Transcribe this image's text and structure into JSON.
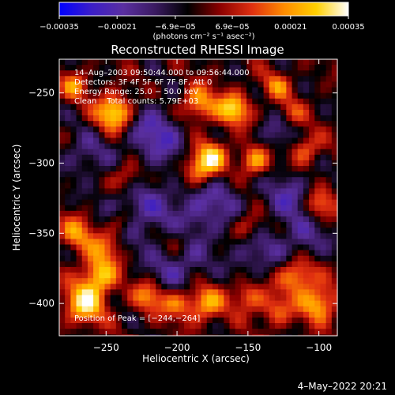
{
  "colors": {
    "background": "#000000",
    "foreground": "#ffffff"
  },
  "chart_data": {
    "type": "heatmap",
    "title": "Reconstructed RHESSI Image",
    "xlabel": "Heliocentric X (arcsec)",
    "ylabel": "Heliocentric Y (arcsec)",
    "xlim": [
      -283,
      -87
    ],
    "ylim": [
      -423,
      -226
    ],
    "x_ticks": [
      -250,
      -200,
      -150,
      -100
    ],
    "x_tick_labels": [
      "−250",
      "−200",
      "−150",
      "−100"
    ],
    "y_ticks": [
      -250,
      -300,
      -350,
      -400
    ],
    "y_tick_labels": [
      "−250",
      "−300",
      "−350",
      "−400"
    ],
    "colorbar": {
      "vmin": -0.00035,
      "vmax": 0.00035,
      "ticks": [
        -0.00035,
        -0.00021,
        -6.9e-05,
        6.9e-05,
        0.00021,
        0.00035
      ],
      "tick_labels": [
        "−0.00035",
        "−0.00021",
        "−6.9e−05",
        "6.9e−05",
        "0.00021",
        "0.00035"
      ],
      "unit_label": "(photons cm⁻² s⁻¹ asec⁻²)",
      "colormap": [
        "#0000ff",
        "#3b1ec8",
        "#5a2fa0",
        "#3a1a60",
        "#000000",
        "#8b0000",
        "#e03010",
        "#ff8c00",
        "#ffd000",
        "#ffffff"
      ]
    },
    "annotations": [
      "14–Aug–2003 09:50:44.000 to 09:56:44.000",
      "Detectors: 3F 4F 5F 6F 7F 8F, Att 0",
      "Energy Range: 25.0 − 50.0 keV",
      "Clean    Total counts: 5.79E+03",
      "Position of Peak = [−244,−264]"
    ],
    "peak": {
      "x": -244,
      "y": -264
    },
    "peak_value": 0.00035,
    "grid": false,
    "bright_sources": [
      {
        "x": -244,
        "y": -264,
        "amp": 1.0,
        "sigma": 9
      },
      {
        "x": -272,
        "y": -245,
        "amp": 0.55,
        "sigma": 7
      },
      {
        "x": -185,
        "y": -258,
        "amp": 0.75,
        "sigma": 9
      },
      {
        "x": -160,
        "y": -262,
        "amp": 0.85,
        "sigma": 8
      },
      {
        "x": -130,
        "y": -245,
        "amp": 0.5,
        "sigma": 7
      },
      {
        "x": -185,
        "y": -305,
        "amp": 0.8,
        "sigma": 9
      },
      {
        "x": -175,
        "y": -295,
        "amp": 0.7,
        "sigma": 8
      },
      {
        "x": -145,
        "y": -298,
        "amp": 0.75,
        "sigma": 8
      },
      {
        "x": -235,
        "y": -310,
        "amp": 0.55,
        "sigma": 8
      },
      {
        "x": -270,
        "y": -350,
        "amp": 0.6,
        "sigma": 9
      },
      {
        "x": -250,
        "y": -360,
        "amp": 0.5,
        "sigma": 8
      },
      {
        "x": -240,
        "y": -342,
        "amp": 0.45,
        "sigma": 7
      },
      {
        "x": -150,
        "y": -345,
        "amp": 0.5,
        "sigma": 8
      },
      {
        "x": -100,
        "y": -330,
        "amp": 0.65,
        "sigma": 8
      },
      {
        "x": -110,
        "y": -290,
        "amp": 0.55,
        "sigma": 8
      },
      {
        "x": -265,
        "y": -400,
        "amp": 0.9,
        "sigma": 10
      },
      {
        "x": -255,
        "y": -380,
        "amp": 0.8,
        "sigma": 9
      },
      {
        "x": -220,
        "y": -395,
        "amp": 0.6,
        "sigma": 8
      },
      {
        "x": -200,
        "y": -400,
        "amp": 0.55,
        "sigma": 8
      },
      {
        "x": -180,
        "y": -400,
        "amp": 0.7,
        "sigma": 9
      },
      {
        "x": -150,
        "y": -395,
        "amp": 0.55,
        "sigma": 8
      },
      {
        "x": -115,
        "y": -380,
        "amp": 0.75,
        "sigma": 9
      },
      {
        "x": -100,
        "y": -400,
        "amp": 0.8,
        "sigma": 9
      },
      {
        "x": -130,
        "y": -405,
        "amp": 0.5,
        "sigma": 8
      },
      {
        "x": -200,
        "y": -355,
        "amp": 0.35,
        "sigma": 7
      },
      {
        "x": -120,
        "y": -265,
        "amp": 0.4,
        "sigma": 7
      }
    ],
    "dark_regions": [
      {
        "x": -215,
        "y": -280,
        "amp": -0.55,
        "sigma": 16
      },
      {
        "x": -230,
        "y": -335,
        "amp": -0.5,
        "sigma": 16
      },
      {
        "x": -180,
        "y": -330,
        "amp": -0.5,
        "sigma": 18
      },
      {
        "x": -120,
        "y": -325,
        "amp": -0.45,
        "sigma": 14
      },
      {
        "x": -200,
        "y": -375,
        "amp": -0.45,
        "sigma": 14
      },
      {
        "x": -145,
        "y": -365,
        "amp": -0.4,
        "sigma": 12
      },
      {
        "x": -110,
        "y": -355,
        "amp": -0.4,
        "sigma": 12
      },
      {
        "x": -265,
        "y": -295,
        "amp": -0.35,
        "sigma": 12
      },
      {
        "x": -130,
        "y": -280,
        "amp": -0.4,
        "sigma": 10
      }
    ]
  },
  "timestamp": "4–May–2022 20:21"
}
